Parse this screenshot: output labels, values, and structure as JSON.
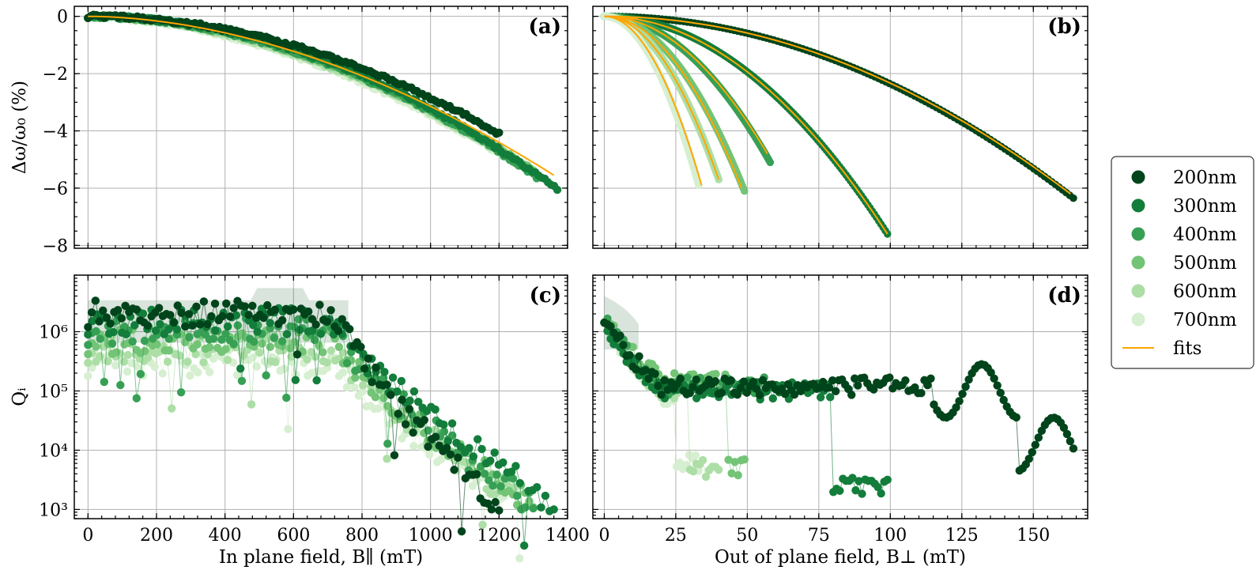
{
  "figure": {
    "legend": {
      "position": "right",
      "entries": [
        {
          "label": "200nm",
          "color": "#00441b",
          "kind": "marker"
        },
        {
          "label": "300nm",
          "color": "#137d3b",
          "kind": "marker"
        },
        {
          "label": "400nm",
          "color": "#37a055",
          "kind": "marker"
        },
        {
          "label": "500nm",
          "color": "#73c476",
          "kind": "marker"
        },
        {
          "label": "600nm",
          "color": "#acdea6",
          "kind": "marker"
        },
        {
          "label": "700nm",
          "color": "#d7efd1",
          "kind": "marker"
        },
        {
          "label": "fits",
          "color": "#ffa500",
          "kind": "line"
        }
      ]
    }
  },
  "chart_data": [
    {
      "panel": "(a)",
      "type": "scatter",
      "xlabel": "In plane field, B∥ (mT)",
      "ylabel": "Δω/ω₀ (%)",
      "xlim": [
        -40,
        1400
      ],
      "ylim": [
        -8.1,
        0.35
      ],
      "xticks": [
        0,
        200,
        400,
        600,
        800,
        1000,
        1200,
        1400
      ],
      "yticks": [
        0,
        -2,
        -4,
        -6,
        -8
      ],
      "yticklabels": [
        "0",
        "−2",
        "−4",
        "−6",
        "−8"
      ],
      "grid": true,
      "xticklabels_visible": false,
      "series": [
        {
          "name": "200nm",
          "xmax": 1200,
          "ymax_drop": 4.1,
          "p": 2.0
        },
        {
          "name": "300nm",
          "xmax": 1370,
          "ymax_drop": 6.05,
          "p": 2.0
        },
        {
          "name": "400nm",
          "xmax": 1310,
          "ymax_drop": 5.6,
          "p": 1.95
        },
        {
          "name": "500nm",
          "xmax": 1300,
          "ymax_drop": 5.4,
          "p": 1.9
        },
        {
          "name": "600nm",
          "xmax": 1280,
          "ymax_drop": 5.3,
          "p": 1.85
        },
        {
          "name": "700nm",
          "xmax": 1260,
          "ymax_drop": 5.2,
          "p": 1.8
        }
      ],
      "fits": [
        {
          "x": [
            0,
            1360
          ],
          "drop": 5.55,
          "p": 1.85
        }
      ]
    },
    {
      "panel": "(b)",
      "type": "scatter",
      "xlabel": "Out of plane field, B⊥ (mT)",
      "ylabel": "",
      "xlim": [
        -4,
        169
      ],
      "ylim": [
        -8.1,
        0.35
      ],
      "xticks": [
        0,
        25,
        50,
        75,
        100,
        125,
        150
      ],
      "yticks": [
        0,
        -2,
        -4,
        -6,
        -8
      ],
      "grid": true,
      "xticklabels_visible": false,
      "yticklabels_visible": false,
      "series": [
        {
          "name": "200nm",
          "xmax": 164,
          "ymax_drop": 6.35
        },
        {
          "name": "300nm",
          "xmax": 99,
          "ymax_drop": 7.6
        },
        {
          "name": "400nm",
          "xmax": 58,
          "ymax_drop": 5.1
        },
        {
          "name": "500nm",
          "xmax": 49,
          "ymax_drop": 6.1
        },
        {
          "name": "600nm",
          "xmax": 40,
          "ymax_drop": 5.7
        },
        {
          "name": "700nm",
          "xmax": 33,
          "ymax_drop": 5.9
        }
      ],
      "fits": [
        {
          "x": [
            0,
            163
          ],
          "drop": 6.2
        },
        {
          "x": [
            0,
            99
          ],
          "drop": 7.6
        },
        {
          "x": [
            0,
            57
          ],
          "drop": 4.8
        },
        {
          "x": [
            0,
            48
          ],
          "drop": 6.0
        },
        {
          "x": [
            0,
            40
          ],
          "drop": 5.7
        },
        {
          "x": [
            0,
            34
          ],
          "drop": 5.9
        }
      ]
    },
    {
      "panel": "(c)",
      "type": "scatter",
      "yscale": "log",
      "xlabel": "In plane field, B∥ (mT)",
      "ylabel": "Qᵢ",
      "xlim": [
        -40,
        1400
      ],
      "ylim": [
        700,
        9000000
      ],
      "xticks": [
        0,
        200,
        400,
        600,
        800,
        1000,
        1200,
        1400
      ],
      "xticklabels": [
        "0",
        "200",
        "400",
        "600",
        "800",
        "1000",
        "1200",
        "1400"
      ],
      "yticks": [
        1000,
        10000,
        100000,
        1000000
      ],
      "yticklabels": [
        "10³",
        "10⁴",
        "10⁵",
        "10⁶"
      ],
      "grid": true,
      "series": [
        {
          "name": "200nm",
          "plateau": 2000000,
          "xmax": 1200
        },
        {
          "name": "300nm",
          "plateau": 1500000,
          "xmax": 1360
        },
        {
          "name": "400nm",
          "plateau": 1000000,
          "xmax": 1300
        },
        {
          "name": "500nm",
          "plateau": 700000,
          "xmax": 1300
        },
        {
          "name": "600nm",
          "plateau": 500000,
          "xmax": 1280
        },
        {
          "name": "700nm",
          "plateau": 300000,
          "xmax": 1260
        }
      ],
      "end_value": 1200
    },
    {
      "panel": "(d)",
      "type": "scatter",
      "yscale": "log",
      "xlabel": "Out of plane field, B⊥ (mT)",
      "ylabel": "",
      "xlim": [
        -4,
        169
      ],
      "ylim": [
        700,
        9000000
      ],
      "xticks": [
        0,
        25,
        50,
        75,
        100,
        125,
        150
      ],
      "xticklabels": [
        "0",
        "25",
        "50",
        "75",
        "100",
        "125",
        "150"
      ],
      "yticks": [
        1000,
        10000,
        100000,
        1000000
      ],
      "grid": true,
      "yticklabels_visible": false,
      "series": [
        {
          "name": "200nm",
          "plateau": 120000,
          "xmax": 164
        },
        {
          "name": "300nm",
          "plateau": 100000,
          "xmax": 99,
          "drop_at": 80,
          "drop_to": 2500
        },
        {
          "name": "400nm",
          "plateau": 120000,
          "xmax": 57
        },
        {
          "name": "500nm",
          "plateau": 150000,
          "xmax": 49,
          "drop_at": 43,
          "drop_to": 5000
        },
        {
          "name": "600nm",
          "plateau": 100000,
          "xmax": 40,
          "drop_at": 30,
          "drop_to": 5000
        },
        {
          "name": "700nm",
          "plateau": 80000,
          "xmax": 33,
          "drop_at": 25,
          "drop_to": 6000
        }
      ]
    }
  ]
}
